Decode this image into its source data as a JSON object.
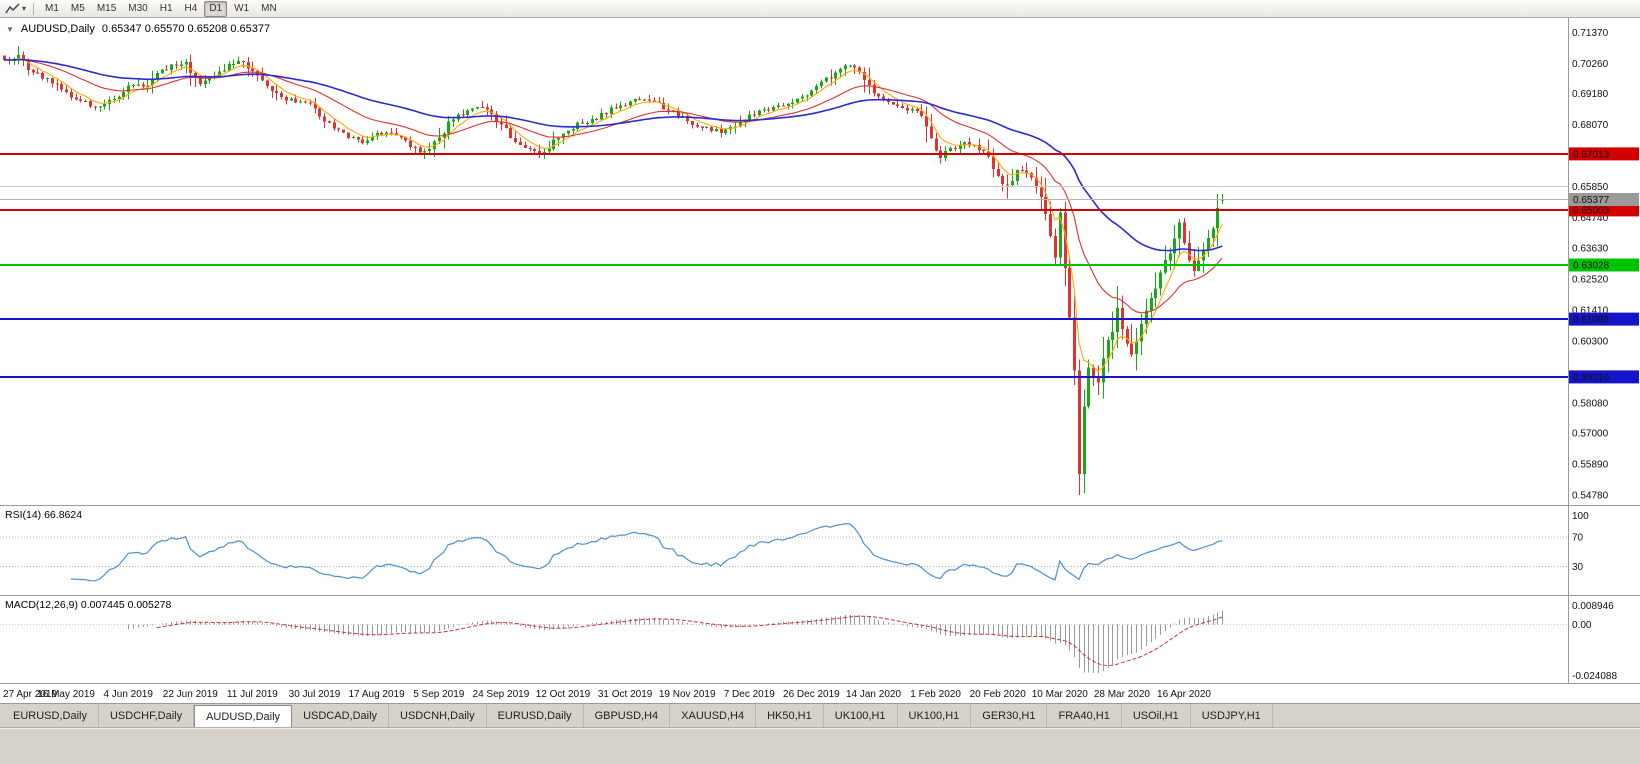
{
  "toolbar": {
    "timeframes": [
      "M1",
      "M5",
      "M15",
      "M30",
      "H1",
      "H4",
      "D1",
      "W1",
      "MN"
    ],
    "active": "D1"
  },
  "chart_title": {
    "symbol": "AUDUSD,Daily",
    "ohlc": "0.65347 0.65570 0.65208 0.65377"
  },
  "chart_data": {
    "type": "candlestick",
    "symbol": "AUDUSD",
    "timeframe": "Daily",
    "quote": {
      "open": 0.65347,
      "high": 0.6557,
      "low": 0.65208,
      "close": 0.65377
    },
    "ylim": {
      "max": 0.7182,
      "min": 0.5452
    },
    "price_ticks": [
      "0.71370",
      "0.70260",
      "0.69180",
      "0.68070",
      "0.65850",
      "0.64740",
      "0.63630",
      "0.62520",
      "0.61410",
      "0.60300",
      "0.58080",
      "0.57000",
      "0.55890",
      "0.54780"
    ],
    "levels": [
      {
        "price": 0.67013,
        "label": "0.67013",
        "color": "#d40000",
        "width": 2,
        "badge": true
      },
      {
        "price": 0.6585,
        "label": "",
        "color": "#c9c9c9",
        "width": 1,
        "badge": false
      },
      {
        "price": 0.65003,
        "label": "0.65003",
        "color": "#d40000",
        "width": 2,
        "badge": true
      },
      {
        "price": 0.63028,
        "label": "0.63028",
        "color": "#00c400",
        "width": 2,
        "badge": true
      },
      {
        "price": 0.61086,
        "label": "0.61086",
        "color": "#1414c8",
        "width": 2,
        "badge": true
      },
      {
        "price": 0.5901,
        "label": "0.59010",
        "color": "#1414c8",
        "width": 2,
        "badge": true
      }
    ],
    "bid_line": {
      "price": 0.65377,
      "label": "0.65377",
      "color": "#b4b4b4",
      "badge_color": "#9a9a9a"
    },
    "candles": {
      "count": 256,
      "up_color": "#18a818",
      "down_color": "#e03232",
      "extreme_low": 0.5478,
      "anchors": [
        [
          0,
          0.7035
        ],
        [
          3,
          0.7048
        ],
        [
          6,
          0.6992
        ],
        [
          10,
          0.6963
        ],
        [
          13,
          0.692
        ],
        [
          16,
          0.689
        ],
        [
          19,
          0.6872
        ],
        [
          22,
          0.689
        ],
        [
          25,
          0.6925
        ],
        [
          27,
          0.6952
        ],
        [
          29,
          0.6935
        ],
        [
          32,
          0.6985
        ],
        [
          35,
          0.7015
        ],
        [
          38,
          0.7036
        ],
        [
          41,
          0.6945
        ],
        [
          44,
          0.6985
        ],
        [
          48,
          0.703
        ],
        [
          50,
          0.7042
        ],
        [
          52,
          0.6995
        ],
        [
          55,
          0.6945
        ],
        [
          58,
          0.6905
        ],
        [
          62,
          0.6885
        ],
        [
          65,
          0.6878
        ],
        [
          67,
          0.682
        ],
        [
          69,
          0.679
        ],
        [
          72,
          0.6762
        ],
        [
          75,
          0.6748
        ],
        [
          78,
          0.677
        ],
        [
          81,
          0.6782
        ],
        [
          84,
          0.6742
        ],
        [
          87,
          0.6706
        ],
        [
          89,
          0.673
        ],
        [
          91,
          0.6762
        ],
        [
          94,
          0.683
        ],
        [
          97,
          0.6858
        ],
        [
          100,
          0.6868
        ],
        [
          103,
          0.6828
        ],
        [
          106,
          0.6762
        ],
        [
          109,
          0.6722
        ],
        [
          112,
          0.6702
        ],
        [
          114,
          0.6728
        ],
        [
          117,
          0.6775
        ],
        [
          120,
          0.6808
        ],
        [
          123,
          0.6822
        ],
        [
          126,
          0.685
        ],
        [
          129,
          0.6878
        ],
        [
          132,
          0.6892
        ],
        [
          135,
          0.6898
        ],
        [
          138,
          0.6868
        ],
        [
          141,
          0.6838
        ],
        [
          144,
          0.6812
        ],
        [
          147,
          0.6792
        ],
        [
          150,
          0.6782
        ],
        [
          153,
          0.6805
        ],
        [
          156,
          0.6838
        ],
        [
          159,
          0.6858
        ],
        [
          162,
          0.6872
        ],
        [
          165,
          0.6885
        ],
        [
          168,
          0.6915
        ],
        [
          171,
          0.6952
        ],
        [
          174,
          0.6998
        ],
        [
          176,
          0.7028
        ],
        [
          178,
          0.7002
        ],
        [
          180,
          0.6975
        ],
        [
          182,
          0.6918
        ],
        [
          185,
          0.6888
        ],
        [
          188,
          0.6868
        ],
        [
          191,
          0.6855
        ],
        [
          193,
          0.6808
        ],
        [
          195,
          0.6722
        ],
        [
          196,
          0.6695
        ],
        [
          198,
          0.6718
        ],
        [
          201,
          0.6742
        ],
        [
          204,
          0.6722
        ],
        [
          206,
          0.6695
        ],
        [
          208,
          0.6618
        ],
        [
          210,
          0.6582
        ],
        [
          212,
          0.6645
        ],
        [
          214,
          0.6628
        ],
        [
          216,
          0.6592
        ],
        [
          218,
          0.6495
        ],
        [
          220,
          0.632
        ],
        [
          221,
          0.648
        ],
        [
          222,
          0.628
        ],
        [
          223,
          0.612
        ],
        [
          224,
          0.592
        ],
        [
          225,
          0.556
        ],
        [
          226,
          0.578
        ],
        [
          227,
          0.5935
        ],
        [
          229,
          0.588
        ],
        [
          231,
          0.602
        ],
        [
          233,
          0.613
        ],
        [
          234,
          0.6068
        ],
        [
          236,
          0.5985
        ],
        [
          238,
          0.6082
        ],
        [
          240,
          0.617
        ],
        [
          242,
          0.6258
        ],
        [
          244,
          0.6352
        ],
        [
          246,
          0.6438
        ],
        [
          247,
          0.6368
        ],
        [
          249,
          0.6295
        ],
        [
          251,
          0.6362
        ],
        [
          253,
          0.6452
        ],
        [
          255,
          0.65377
        ]
      ]
    },
    "moving_averages": [
      {
        "period": 6,
        "color": "#ffa800",
        "width": 1.1
      },
      {
        "period": 22,
        "color": "#e03232",
        "width": 1.1
      },
      {
        "period": 55,
        "color": "#2b2bd4",
        "width": 1.6
      }
    ],
    "right_margin_fraction": 0.22,
    "x_labels": [
      "27 Apr 2019",
      "16 May 2019",
      "4 Jun 2019",
      "22 Jun 2019",
      "11 Jul 2019",
      "30 Jul 2019",
      "17 Aug 2019",
      "5 Sep 2019",
      "24 Sep 2019",
      "12 Oct 2019",
      "31 Oct 2019",
      "19 Nov 2019",
      "7 Dec 2019",
      "26 Dec 2019",
      "14 Jan 2020",
      "1 Feb 2020",
      "20 Feb 2020",
      "10 Mar 2020",
      "28 Mar 2020",
      "16 Apr 2020"
    ],
    "rsi": {
      "label": "RSI(14) 66.8624",
      "period": 14,
      "current": 66.8624,
      "color": "#4a90d2",
      "dotted_levels": [
        70,
        30
      ],
      "ticks": [
        "100",
        "70",
        "30"
      ],
      "tick_values": [
        100,
        70,
        30
      ],
      "ylim": {
        "max": 110,
        "min": -5
      }
    },
    "macd": {
      "label": "MACD(12,26,9) 0.007445 0.005278",
      "fast": 12,
      "slow": 26,
      "signal": 9,
      "main_value": 0.007445,
      "signal_value": 0.005278,
      "hist_color": "#9a9a9a",
      "signal_color": "#cc3333",
      "ticks": [
        "0.008946",
        "0.00",
        "-0.024088"
      ],
      "tick_values": [
        0.008946,
        0,
        -0.024088
      ],
      "ylim": {
        "max": 0.0125,
        "min": -0.0262
      }
    }
  },
  "tabs": {
    "active_index": 2,
    "items": [
      "EURUSD,Daily",
      "USDCHF,Daily",
      "AUDUSD,Daily",
      "USDCAD,Daily",
      "USDCNH,Daily",
      "EURUSD,Daily",
      "GBPUSD,H4",
      "XAUUSD,H4",
      "HK50,H1",
      "UK100,H1",
      "UK100,H1",
      "GER30,H1",
      "FRA40,H1",
      "USOil,H1",
      "USDJPY,H1"
    ]
  }
}
